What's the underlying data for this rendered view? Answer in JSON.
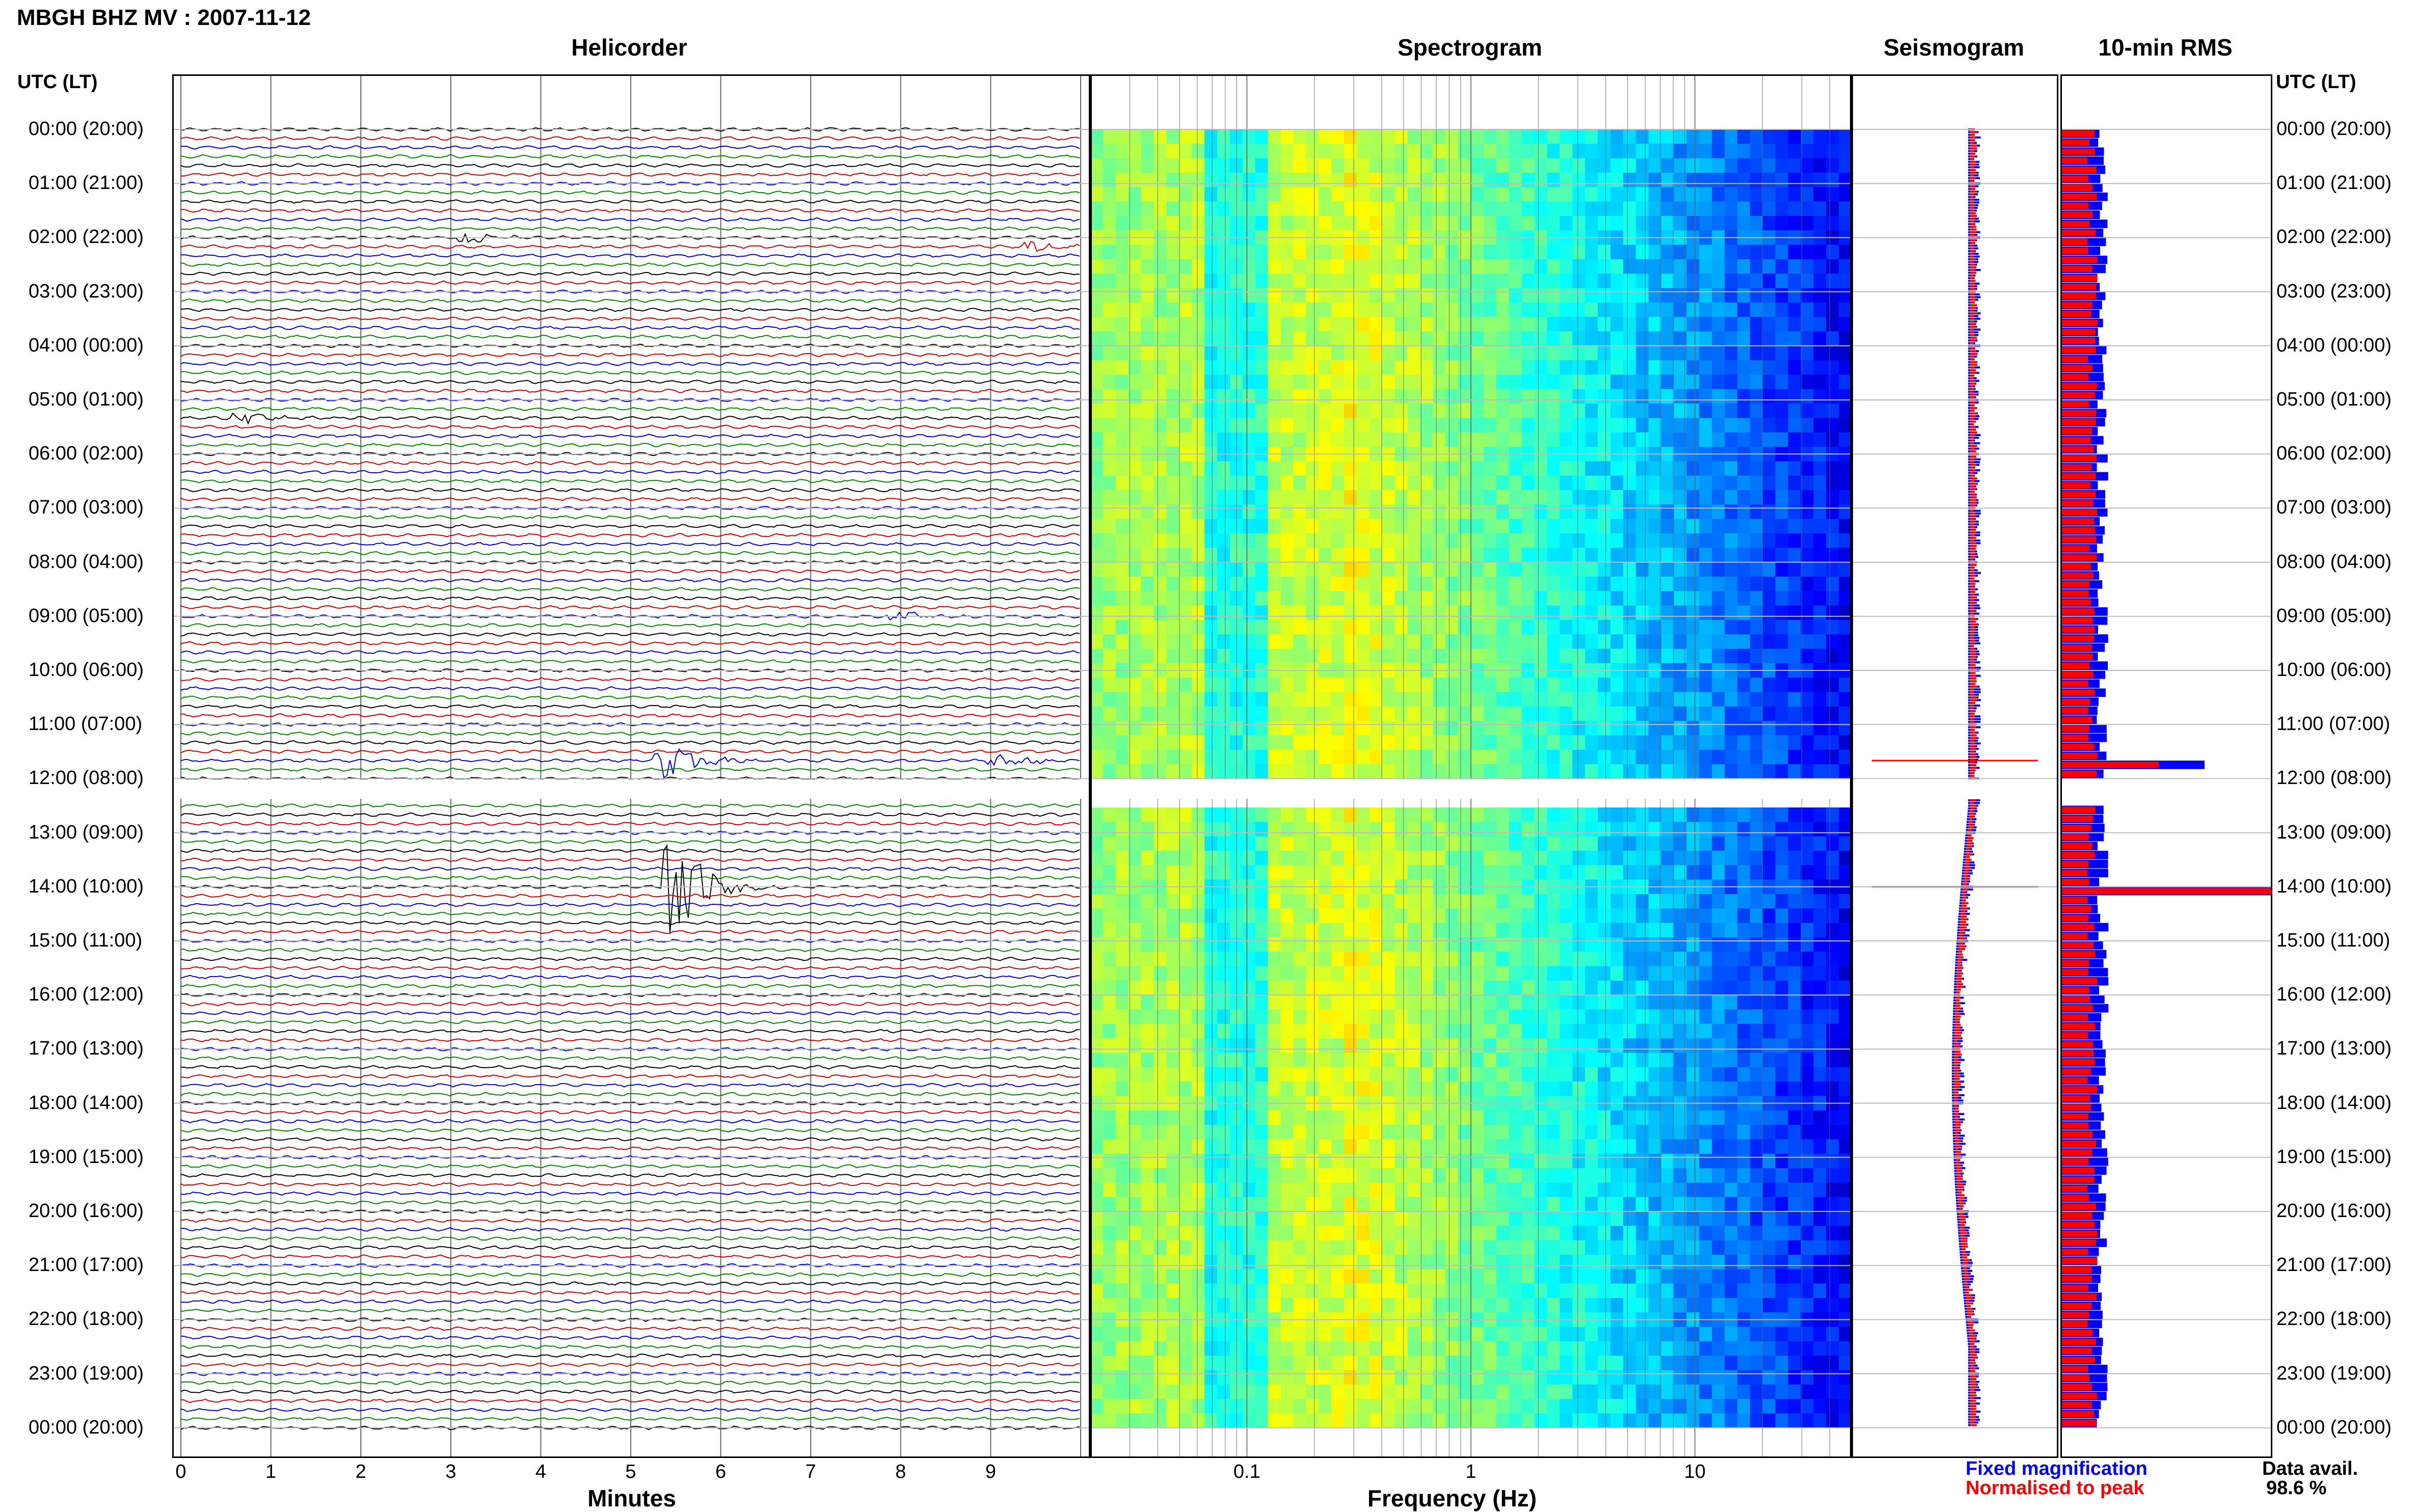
{
  "title": "MBGH BHZ MV : 2007-11-12",
  "panels": {
    "helicorder": "Helicorder",
    "spectrogram": "Spectrogram",
    "seismogram": "Seismogram",
    "rms": "10-min RMS"
  },
  "time_axis_label": "UTC (LT)",
  "time_labels": [
    "00:00 (20:00)",
    "01:00 (21:00)",
    "02:00 (22:00)",
    "03:00 (23:00)",
    "04:00 (00:00)",
    "05:00 (01:00)",
    "06:00 (02:00)",
    "07:00 (03:00)",
    "08:00 (04:00)",
    "09:00 (05:00)",
    "10:00 (06:00)",
    "11:00 (07:00)",
    "12:00 (08:00)",
    "13:00 (09:00)",
    "14:00 (10:00)",
    "15:00 (11:00)",
    "16:00 (12:00)",
    "17:00 (13:00)",
    "18:00 (14:00)",
    "19:00 (15:00)",
    "20:00 (16:00)",
    "21:00 (17:00)",
    "22:00 (18:00)",
    "23:00 (19:00)",
    "00:00 (20:00)"
  ],
  "helicorder_xlabel": "Minutes",
  "helicorder_ticks": [
    "0",
    "1",
    "2",
    "3",
    "4",
    "5",
    "6",
    "7",
    "8",
    "9"
  ],
  "spectrogram_xlabel": "Frequency (Hz)",
  "spectrogram_ticks": [
    "0.1",
    "1",
    "10"
  ],
  "legend": {
    "fixed": "Fixed magnification",
    "normalised": "Normalised to peak",
    "fixed_color": "#0000ff",
    "normalised_color": "#ff0000"
  },
  "data_availability": {
    "label": "Data avail.",
    "value": "98.6 %"
  },
  "chart_data": {
    "type": "heatmap",
    "station": "MBGH BHZ MV",
    "date": "2007-11-12",
    "helicorder": {
      "xlabel": "Minutes",
      "xlim": [
        0,
        10
      ],
      "rows_per_hour": 6,
      "trace_colors": [
        "#000000",
        "#cc0000",
        "#0000cc",
        "#008800"
      ],
      "events": [
        {
          "utc": "02:00",
          "minute": 3.2,
          "amplitude": "small"
        },
        {
          "utc": "02:10",
          "minute": 9.5,
          "amplitude": "small"
        },
        {
          "utc": "05:20",
          "minute": 0.7,
          "amplitude": "small"
        },
        {
          "utc": "09:00",
          "minute": 8.0,
          "amplitude": "small"
        },
        {
          "utc": "11:40",
          "minute": 5.4,
          "amplitude": "large"
        },
        {
          "utc": "11:40",
          "minute": 9.1,
          "amplitude": "moderate"
        },
        {
          "utc": "14:00",
          "minute": 5.5,
          "amplitude": "very large"
        }
      ],
      "data_gap_utc": [
        "12:00",
        "12:20"
      ]
    },
    "spectrogram": {
      "xlabel": "Frequency (Hz)",
      "xscale": "log",
      "xlim": [
        0.02,
        50
      ],
      "peak_band_hz": [
        0.2,
        0.3
      ],
      "colormap": "jet"
    },
    "rms_10min": {
      "series": [
        {
          "name": "Fixed magnification",
          "color": "#0000ff"
        },
        {
          "name": "Normalised to peak",
          "color": "#ff0000"
        }
      ],
      "spikes_utc": [
        "11:40",
        "14:00"
      ]
    },
    "data_available_percent": 98.6
  }
}
